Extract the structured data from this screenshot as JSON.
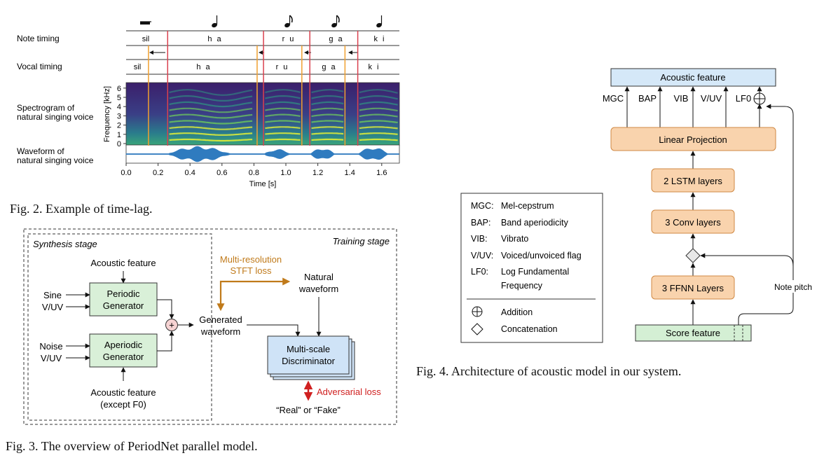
{
  "fig2": {
    "caption": "Fig. 2.  Example of time-lag.",
    "row_labels": {
      "note_timing": "Note timing",
      "vocal_timing": "Vocal timing",
      "spectrogram": [
        "Spectrogram of",
        "natural singing voice"
      ],
      "waveform": [
        "Waveform of",
        "natural singing voice"
      ]
    },
    "note_syllables": [
      "sil",
      "h a",
      "r u",
      "g a",
      "k i"
    ],
    "vocal_syllables": [
      "sil",
      "h a",
      "r u",
      "g a",
      "k i"
    ],
    "note_symbols": [
      "rest",
      "quarter",
      "eighth",
      "eighth",
      "quarter"
    ],
    "ylabel": "Frequency [kHz]",
    "yticks": [
      "0",
      "1",
      "2",
      "3",
      "4",
      "5",
      "6"
    ],
    "xlabel": "Time [s]",
    "xticks": [
      "0.0",
      "0.2",
      "0.4",
      "0.6",
      "0.8",
      "1.0",
      "1.2",
      "1.4",
      "1.6"
    ],
    "note_boundaries_s": [
      0.26,
      0.86,
      1.15,
      1.45
    ],
    "vocal_boundaries_s": [
      0.14,
      0.82,
      1.1,
      1.37
    ],
    "colors": {
      "note_boundary": "#d9414f",
      "vocal_boundary": "#f0a030",
      "waveform": "#2f7bbf"
    }
  },
  "fig3": {
    "caption": "Fig. 3.  The overview of PeriodNet parallel model.",
    "synthesis_stage": "Synthesis stage",
    "training_stage": "Training stage",
    "acoustic_feature_top": "Acoustic feature",
    "acoustic_feature_bottom": [
      "Acoustic feature",
      "(except F0)"
    ],
    "sine": "Sine",
    "vuv1": "V/UV",
    "noise": "Noise",
    "vuv2": "V/UV",
    "periodic_generator": [
      "Periodic",
      "Generator"
    ],
    "aperiodic_generator": [
      "Aperiodic",
      "Generator"
    ],
    "generated_waveform": [
      "Generated",
      "waveform"
    ],
    "stft_loss": [
      "Multi-resolution",
      "STFT loss"
    ],
    "natural_waveform": [
      "Natural",
      "waveform"
    ],
    "discriminator": [
      "Multi-scale",
      "Discriminator"
    ],
    "adversarial_loss": "Adversarial loss",
    "real_fake": "“Real” or “Fake”",
    "plus": "+",
    "colors": {
      "generator_fill": "#d9f0d8",
      "discriminator_fill": "#cfe3f7",
      "stft": "#c07a1a",
      "adversarial": "#d02020"
    }
  },
  "fig4": {
    "caption": "Fig. 4.  Architecture of acoustic model in our system.",
    "acoustic_feature": "Acoustic feature",
    "outputs": [
      "MGC",
      "BAP",
      "VIB",
      "V/UV",
      "LF0"
    ],
    "linear_projection": "Linear Projection",
    "lstm": "2 LSTM layers",
    "conv": "3 Conv layers",
    "ffnn": "3 FFNN Layers",
    "score_feature": "Score feature",
    "note_pitch": "Note pitch",
    "legend": [
      {
        "abbr": "MGC:",
        "desc": [
          "Mel-cepstrum"
        ]
      },
      {
        "abbr": "BAP:",
        "desc": [
          "Band aperiodicity"
        ]
      },
      {
        "abbr": "VIB:",
        "desc": [
          "Vibrato"
        ]
      },
      {
        "abbr": "V/UV:",
        "desc": [
          "Voiced/unvoiced flag"
        ]
      },
      {
        "abbr": "LF0:",
        "desc": [
          "Log Fundamental",
          "Frequency"
        ]
      }
    ],
    "legend_symbols": [
      {
        "symbol": "addition",
        "label": "Addition"
      },
      {
        "symbol": "concatenation",
        "label": "Concatenation"
      }
    ],
    "colors": {
      "block_fill": "#f9d3ad",
      "block_stroke": "#d08a45",
      "top_fill": "#d5e8f8",
      "score_fill": "#d4efd4"
    }
  }
}
